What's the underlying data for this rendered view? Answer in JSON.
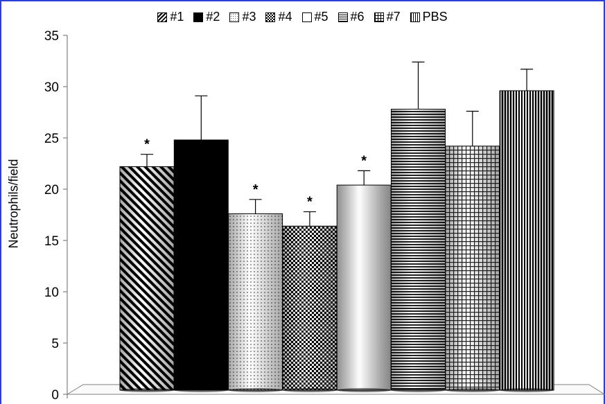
{
  "chart_data": {
    "type": "bar",
    "categories": [
      "#1",
      "#2",
      "#3",
      "#4",
      "#5",
      "#6",
      "#7",
      "PBS"
    ],
    "values": [
      22.2,
      24.8,
      17.6,
      16.4,
      20.4,
      27.8,
      24.2,
      29.6
    ],
    "errors": [
      1.2,
      4.3,
      1.4,
      1.4,
      1.4,
      4.6,
      3.4,
      2.1
    ],
    "significant": [
      "*",
      "",
      "*",
      "*",
      "*",
      "",
      "",
      ""
    ],
    "patterns": [
      "diag-lines",
      "solid",
      "dots",
      "checker",
      "white-gradient",
      "horizontal-lines",
      "grid",
      "vertical-lines"
    ],
    "ylabel": "Neutrophils/field",
    "xlabel": "",
    "title": "",
    "ylim": [
      0,
      35
    ],
    "yticks": [
      0,
      5,
      10,
      15,
      20,
      25,
      30,
      35
    ],
    "legend": [
      "#1",
      "#2",
      "#3",
      "#4",
      "#5",
      "#6",
      "#7",
      "PBS"
    ],
    "legend_position": "top-center",
    "grid": false,
    "style": "3d-floor"
  },
  "frame_color": "#2a3fd8"
}
